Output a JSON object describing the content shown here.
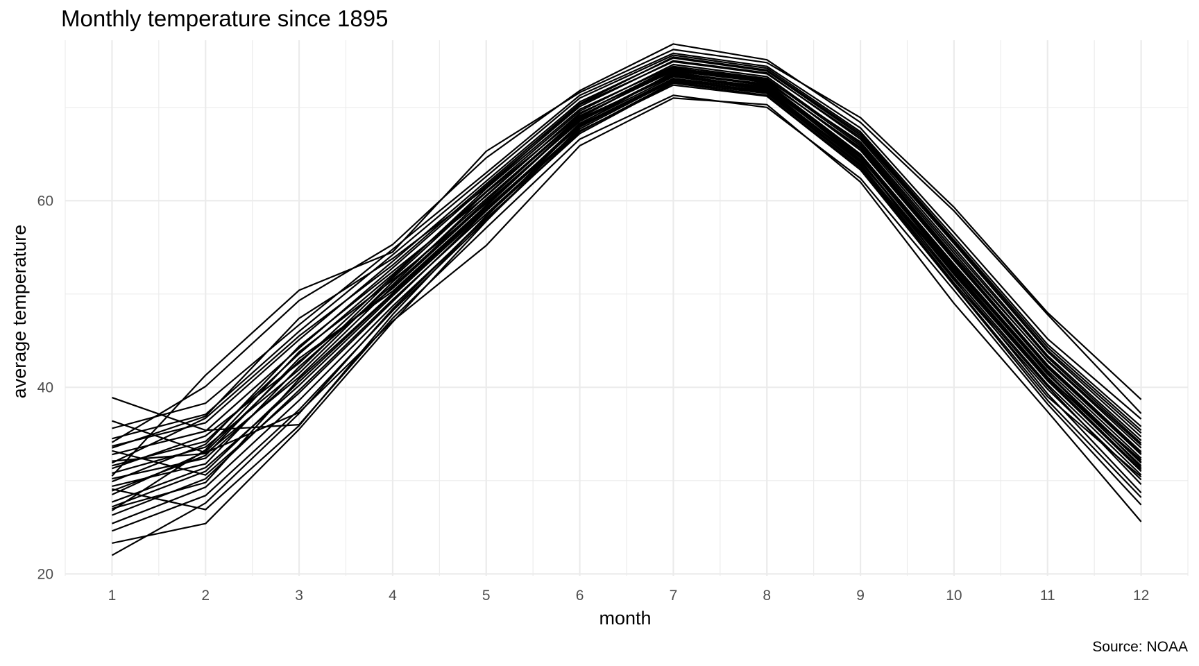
{
  "chart_data": {
    "type": "line",
    "title": "Monthly temperature since 1895",
    "xlabel": "month",
    "ylabel": "average temperature",
    "caption": "Source: NOAA",
    "x": [
      1,
      2,
      3,
      4,
      5,
      6,
      7,
      8,
      9,
      10,
      11,
      12
    ],
    "x_ticks": [
      "1",
      "2",
      "3",
      "4",
      "5",
      "6",
      "7",
      "8",
      "9",
      "10",
      "11",
      "12"
    ],
    "y_ticks": [
      "20",
      "40",
      "60"
    ],
    "xlim": [
      0.5,
      12.5
    ],
    "ylim": [
      19.8,
      77.2
    ],
    "grid": true,
    "legend": "none",
    "colors": {
      "line": "#000000",
      "grid": "#ebebeb",
      "tick_text": "#4d4d4d"
    },
    "series": [
      {
        "values": [
          30.2,
          32.4,
          41.5,
          51.3,
          60.2,
          69.0,
          74.1,
          72.9,
          65.4,
          53.6,
          42.1,
          32.8
        ]
      },
      {
        "values": [
          28.5,
          33.1,
          42.8,
          50.6,
          59.8,
          68.5,
          73.6,
          72.4,
          64.8,
          52.9,
          41.4,
          31.9
        ]
      },
      {
        "values": [
          31.6,
          34.2,
          43.6,
          52.1,
          61.0,
          69.6,
          74.6,
          73.3,
          66.1,
          54.4,
          42.8,
          33.5
        ]
      },
      {
        "values": [
          27.2,
          31.0,
          40.6,
          50.0,
          59.2,
          68.1,
          73.1,
          71.9,
          64.3,
          52.3,
          40.9,
          31.2
        ]
      },
      {
        "values": [
          32.8,
          35.3,
          44.2,
          52.8,
          61.6,
          70.1,
          75.0,
          73.7,
          66.6,
          55.0,
          43.4,
          34.3
        ]
      },
      {
        "values": [
          29.4,
          31.8,
          42.2,
          51.0,
          60.6,
          69.3,
          74.3,
          72.6,
          65.0,
          53.2,
          41.8,
          32.4
        ]
      },
      {
        "values": [
          26.3,
          30.2,
          39.7,
          49.4,
          58.6,
          67.7,
          72.9,
          71.6,
          63.9,
          51.8,
          40.3,
          30.6
        ]
      },
      {
        "values": [
          33.7,
          36.2,
          45.1,
          53.5,
          62.1,
          70.6,
          75.3,
          73.9,
          67.0,
          55.6,
          44.0,
          35.1
        ]
      },
      {
        "values": [
          30.8,
          33.6,
          41.9,
          51.7,
          60.9,
          69.1,
          73.9,
          72.7,
          65.7,
          53.9,
          42.4,
          33.1
        ]
      },
      {
        "values": [
          28.9,
          32.7,
          43.1,
          50.3,
          59.5,
          68.8,
          73.4,
          72.2,
          64.6,
          52.6,
          41.1,
          31.6
        ]
      },
      {
        "values": [
          25.4,
          29.3,
          38.6,
          48.7,
          58.1,
          67.2,
          72.6,
          71.3,
          63.5,
          51.2,
          39.8,
          30.1
        ]
      },
      {
        "values": [
          34.5,
          37.1,
          46.0,
          54.2,
          62.6,
          71.0,
          75.6,
          74.2,
          67.4,
          56.1,
          44.6,
          35.8
        ]
      },
      {
        "values": [
          31.3,
          34.8,
          42.6,
          51.9,
          61.3,
          69.8,
          74.4,
          73.1,
          65.9,
          54.1,
          42.9,
          33.8
        ]
      },
      {
        "values": [
          27.7,
          31.4,
          40.2,
          49.8,
          59.0,
          68.3,
          73.3,
          72.0,
          64.2,
          52.1,
          40.7,
          31.0
        ]
      },
      {
        "values": [
          29.9,
          33.9,
          44.4,
          52.4,
          60.5,
          69.4,
          74.0,
          72.8,
          65.6,
          53.8,
          42.3,
          32.9
        ]
      },
      {
        "values": [
          32.1,
          32.9,
          41.1,
          50.8,
          60.0,
          68.9,
          74.2,
          73.0,
          66.3,
          54.7,
          43.2,
          34.0
        ]
      },
      {
        "values": [
          26.8,
          33.3,
          43.8,
          51.5,
          59.7,
          68.6,
          73.7,
          72.5,
          64.9,
          53.0,
          41.6,
          31.4
        ]
      },
      {
        "values": [
          33.2,
          30.6,
          39.4,
          49.2,
          58.9,
          68.0,
          72.8,
          71.8,
          64.1,
          52.5,
          41.0,
          32.2
        ]
      },
      {
        "values": [
          24.6,
          28.4,
          37.6,
          48.2,
          57.9,
          67.4,
          72.7,
          71.5,
          63.7,
          51.5,
          40.1,
          29.6
        ]
      },
      {
        "values": [
          35.6,
          38.3,
          46.7,
          54.8,
          63.0,
          71.3,
          75.8,
          74.4,
          67.8,
          56.6,
          45.2,
          36.6
        ]
      },
      {
        "values": [
          36.4,
          33.0,
          37.3,
          47.1,
          55.2,
          65.9,
          71.0,
          70.3,
          62.0,
          49.0,
          37.4,
          25.6
        ]
      },
      {
        "values": [
          38.9,
          35.4,
          36.0,
          47.4,
          57.1,
          66.6,
          71.3,
          70.0,
          62.4,
          50.4,
          38.2,
          27.4
        ]
      },
      {
        "values": [
          22.0,
          27.6,
          37.2,
          48.4,
          58.3,
          68.2,
          73.8,
          72.3,
          64.4,
          51.6,
          39.3,
          28.7
        ]
      },
      {
        "values": [
          23.3,
          25.4,
          35.5,
          47.0,
          57.8,
          67.9,
          73.0,
          71.7,
          63.8,
          51.0,
          39.0,
          30.4
        ]
      },
      {
        "values": [
          30.5,
          41.3,
          50.4,
          54.5,
          65.3,
          71.6,
          76.2,
          74.8,
          68.9,
          59.3,
          48.0,
          38.7
        ]
      },
      {
        "values": [
          34.1,
          40.1,
          49.3,
          55.3,
          64.6,
          71.8,
          76.8,
          75.1,
          68.4,
          58.9,
          47.8,
          37.2
        ]
      },
      {
        "values": [
          29.1,
          26.9,
          35.9,
          47.8,
          58.4,
          67.5,
          72.4,
          71.2,
          63.3,
          50.9,
          38.6,
          28.2
        ]
      },
      {
        "values": [
          31.9,
          36.7,
          45.5,
          53.1,
          61.8,
          70.4,
          75.4,
          74.0,
          67.2,
          55.8,
          44.3,
          35.4
        ]
      },
      {
        "values": [
          27.0,
          29.8,
          40.9,
          50.1,
          59.4,
          68.7,
          73.5,
          72.1,
          64.7,
          52.8,
          41.5,
          32.0
        ]
      },
      {
        "values": [
          33.5,
          36.9,
          47.4,
          53.8,
          61.4,
          70.3,
          74.9,
          73.6,
          66.8,
          55.4,
          43.8,
          34.7
        ]
      }
    ]
  }
}
